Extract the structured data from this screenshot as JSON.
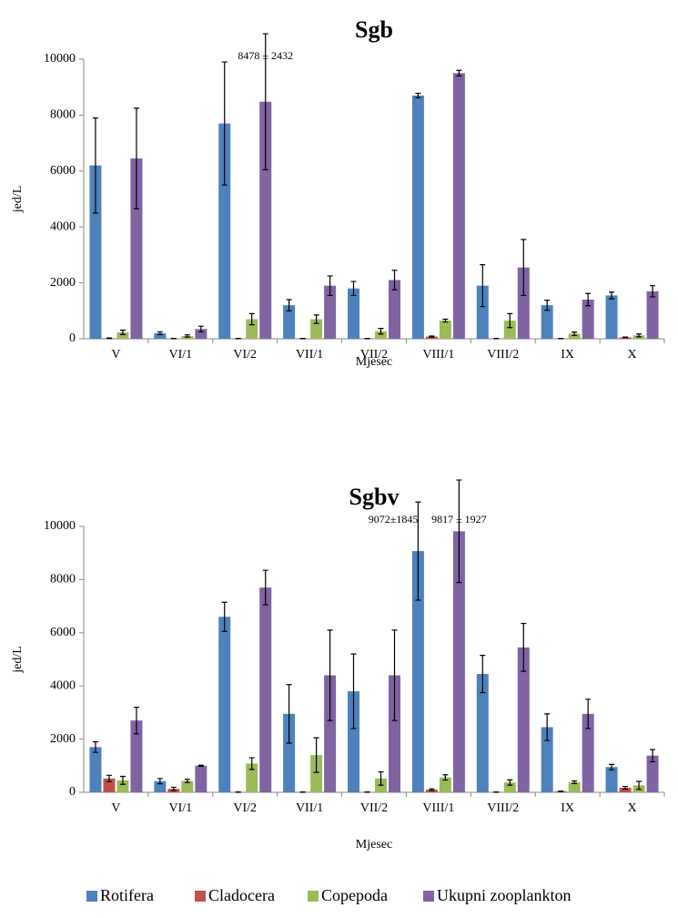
{
  "chart_data": [
    {
      "type": "bar",
      "title": "Sgb",
      "x_label": "Mjesec",
      "y_label": "jed/L",
      "categories": [
        "V",
        "VI/1",
        "VI/2",
        "VII/1",
        "VII/2",
        "VIII/1",
        "VIII/2",
        "IX",
        "X"
      ],
      "ylim": [
        0,
        10000
      ],
      "yticks": [
        0,
        2000,
        4000,
        6000,
        8000,
        10000
      ],
      "annotations": [
        "8478 ± 2432"
      ],
      "series": [
        {
          "name": "Rotifera",
          "color": "#4f81bd",
          "values": [
            6200,
            200,
            7700,
            1200,
            1800,
            8700,
            1900,
            1200,
            1550
          ],
          "errors": [
            1700,
            50,
            2200,
            200,
            250,
            80,
            750,
            180,
            120
          ]
        },
        {
          "name": "Cladocera",
          "color": "#c0504d",
          "values": [
            20,
            10,
            10,
            10,
            10,
            80,
            10,
            10,
            50
          ],
          "errors": [
            10,
            5,
            5,
            5,
            5,
            20,
            5,
            5,
            10
          ]
        },
        {
          "name": "Copepoda",
          "color": "#9bbb59",
          "values": [
            230,
            100,
            700,
            700,
            270,
            650,
            650,
            180,
            120
          ],
          "errors": [
            80,
            40,
            200,
            150,
            100,
            50,
            250,
            60,
            50
          ]
        },
        {
          "name": "Ukupni  zooplankton",
          "color": "#8064a2",
          "values": [
            6450,
            350,
            8478,
            1900,
            2100,
            9500,
            2550,
            1400,
            1700
          ],
          "errors": [
            1800,
            100,
            2432,
            350,
            350,
            100,
            1000,
            220,
            200
          ]
        }
      ]
    },
    {
      "type": "bar",
      "title": "Sgbv",
      "x_label": "Mjesec",
      "y_label": "jed/L",
      "categories": [
        "V",
        "VI/1",
        "VI/2",
        "VII/1",
        "VII/2",
        "VIII/1",
        "VIII/2",
        "IX",
        "X"
      ],
      "ylim": [
        0,
        10000
      ],
      "yticks": [
        0,
        2000,
        4000,
        6000,
        8000,
        10000
      ],
      "annotations": [
        "9072±1845",
        "9817 ± 1927"
      ],
      "series": [
        {
          "values": [
            1700,
            420,
            6600,
            2950,
            3800,
            9072,
            4450,
            2450,
            950
          ],
          "errors": [
            200,
            100,
            550,
            1100,
            1400,
            1845,
            700,
            500,
            100
          ]
        },
        {
          "values": [
            520,
            130,
            10,
            10,
            10,
            100,
            10,
            40,
            170
          ],
          "errors": [
            120,
            60,
            5,
            5,
            5,
            30,
            5,
            10,
            50
          ]
        },
        {
          "values": [
            450,
            430,
            1080,
            1400,
            520,
            560,
            370,
            380,
            260
          ],
          "errors": [
            150,
            60,
            220,
            650,
            250,
            100,
            100,
            50,
            150
          ]
        },
        {
          "values": [
            2700,
            1000,
            7700,
            4400,
            4400,
            9817,
            5450,
            2950,
            1380
          ],
          "errors": [
            500,
            20,
            650,
            1700,
            1700,
            1927,
            900,
            550,
            230
          ]
        }
      ]
    }
  ]
}
